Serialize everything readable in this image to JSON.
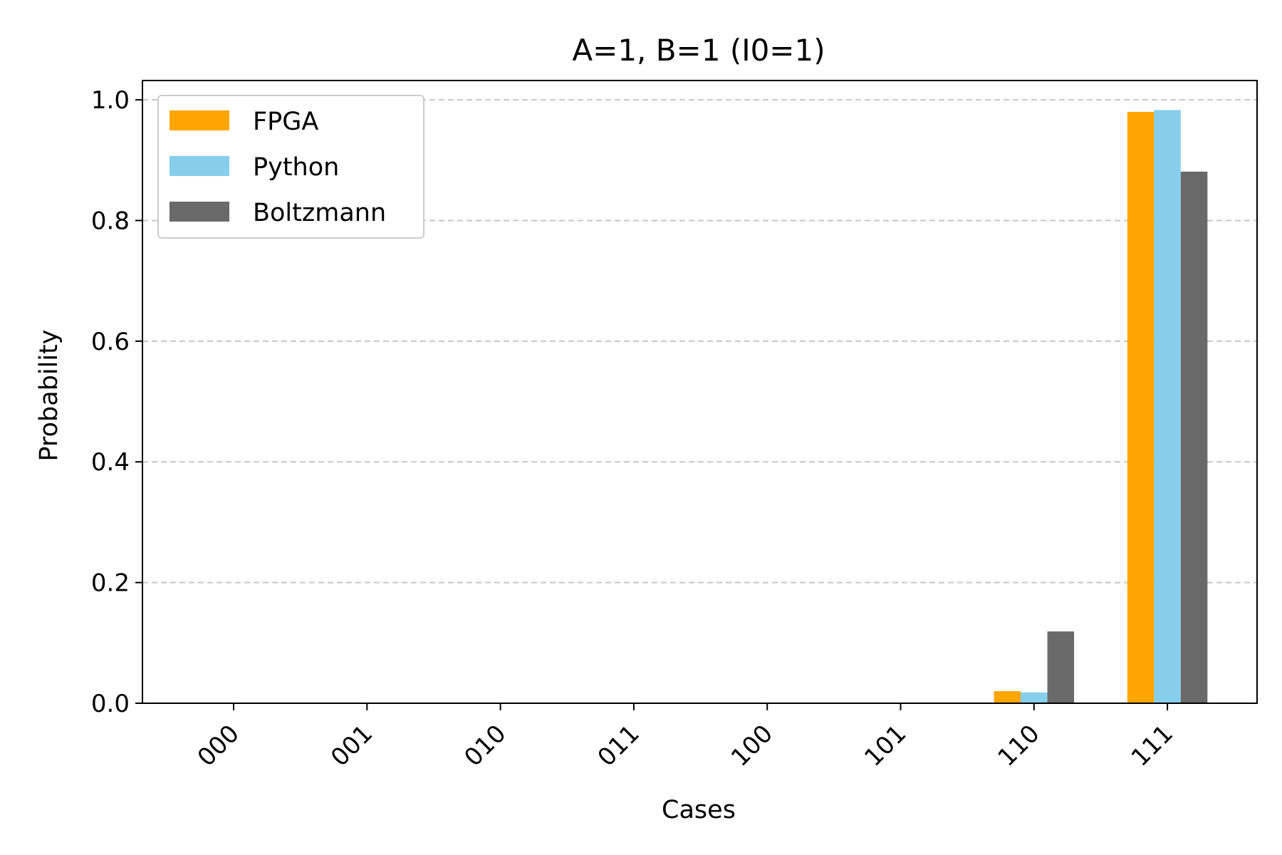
{
  "chart_data": {
    "type": "bar",
    "title": "A=1, B=1 (I0=1)",
    "xlabel": "Cases",
    "ylabel": "Probability",
    "categories": [
      "000",
      "001",
      "010",
      "011",
      "100",
      "101",
      "110",
      "111"
    ],
    "series": [
      {
        "name": "FPGA",
        "color": "#FFA500",
        "values": [
          0,
          0,
          0,
          0,
          0,
          0,
          0.02,
          0.98
        ]
      },
      {
        "name": "Python",
        "color": "#87CEEB",
        "values": [
          0,
          0,
          0,
          0,
          0,
          0,
          0.018,
          0.983
        ]
      },
      {
        "name": "Boltzmann",
        "color": "#696969",
        "values": [
          0,
          0,
          0,
          0,
          0,
          0,
          0.119,
          0.881
        ]
      }
    ],
    "ylim": [
      0,
      1.032
    ],
    "yticks": [
      0.0,
      0.2,
      0.4,
      0.6,
      0.8,
      1.0
    ],
    "ytick_labels": [
      "0.0",
      "0.2",
      "0.4",
      "0.6",
      "0.8",
      "1.0"
    ],
    "grid": "y-axis dashed",
    "legend": "top-left"
  }
}
